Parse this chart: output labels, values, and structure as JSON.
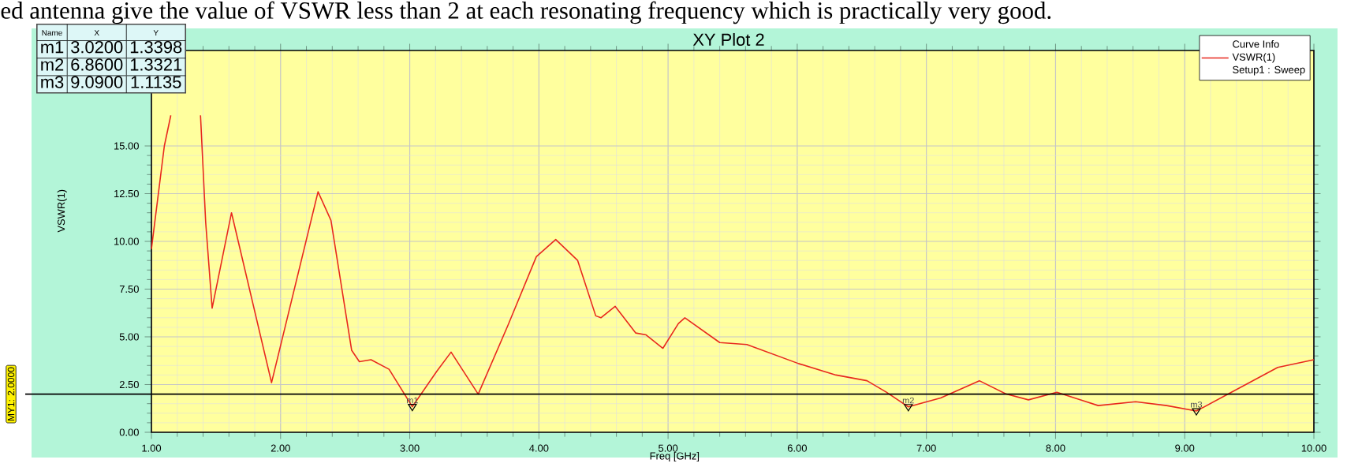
{
  "chart_data": {
    "type": "line",
    "title": "XY Plot 2",
    "xlabel": "Freq [GHz]",
    "ylabel": "VSWR(1)",
    "legend_title": "Curve Info",
    "legend": "top right",
    "grid": true,
    "marker": "none",
    "line_style": "solid",
    "xlim": [
      1,
      10
    ],
    "ylim": [
      0,
      20
    ],
    "xticks": [
      {
        "value": 1,
        "label": "1.00"
      },
      {
        "value": 2,
        "label": "2.00"
      },
      {
        "value": 3,
        "label": "3.00"
      },
      {
        "value": 4,
        "label": "4.00"
      },
      {
        "value": 5,
        "label": "5.00"
      },
      {
        "value": 6,
        "label": "6.00"
      },
      {
        "value": 7,
        "label": "7.00"
      },
      {
        "value": 8,
        "label": "8.00"
      },
      {
        "value": 9,
        "label": "9.00"
      },
      {
        "value": 10,
        "label": "10.00"
      }
    ],
    "yticks": [
      {
        "value": 0,
        "label": "0.00"
      },
      {
        "value": 2.5,
        "label": "2.50"
      },
      {
        "value": 5,
        "label": "5.00"
      },
      {
        "value": 7.5,
        "label": "7.50"
      },
      {
        "value": 10,
        "label": "10.00"
      },
      {
        "value": 12.5,
        "label": "12.50"
      },
      {
        "value": 15,
        "label": "15.00"
      }
    ],
    "x": [
      1.0,
      1.1,
      1.15,
      1.25,
      1.38,
      1.42,
      1.47,
      1.62,
      1.93,
      2.29,
      2.39,
      2.55,
      2.61,
      2.7,
      2.84,
      3.02,
      3.21,
      3.32,
      3.53,
      3.76,
      3.98,
      4.13,
      4.3,
      4.44,
      4.48,
      4.59,
      4.75,
      4.83,
      4.96,
      5.08,
      5.13,
      5.4,
      5.61,
      6.01,
      6.3,
      6.54,
      6.69,
      6.86,
      7.11,
      7.21,
      7.41,
      7.62,
      7.79,
      8.01,
      8.33,
      8.62,
      8.86,
      9.09,
      9.39,
      9.72,
      10.0
    ],
    "series": [
      {
        "name": "VSWR(1)",
        "color": "#e8281e",
        "values": [
          9.6,
          15.0,
          16.6,
          null,
          16.6,
          11.0,
          6.5,
          11.5,
          2.6,
          12.6,
          11.1,
          4.3,
          3.7,
          3.8,
          3.3,
          1.3398,
          3.2,
          4.2,
          2.0,
          5.6,
          9.2,
          10.1,
          9.0,
          6.1,
          6.0,
          6.6,
          5.2,
          5.1,
          4.4,
          5.7,
          6.0,
          4.7,
          4.6,
          3.6,
          3.0,
          2.7,
          2.1,
          1.3321,
          1.8,
          2.1,
          2.7,
          2.0,
          1.7,
          2.1,
          1.4,
          1.6,
          1.4,
          1.1135,
          2.2,
          3.4,
          3.8
        ]
      }
    ],
    "ref_lines": [
      {
        "axis": "y",
        "value": 2,
        "label": "MY1: 2.0000",
        "color": "#000000"
      }
    ],
    "annotations": [
      "ed antenna give the value of VSWR less than 2 at each resonating frequency which is practically very good.",
      "Name",
      "X",
      "Y",
      "m1",
      "3.0200",
      "1.3398",
      "m2",
      "6.8600",
      "1.3321",
      "m3",
      "9.0900",
      "1.1135",
      "Setup1 : Sweep",
      {
        "text": "m1",
        "x": 3.02,
        "y": 1.3398
      },
      {
        "text": "m2",
        "x": 6.86,
        "y": 1.3321
      },
      {
        "text": "m3",
        "x": 9.09,
        "y": 1.1135
      }
    ]
  }
}
